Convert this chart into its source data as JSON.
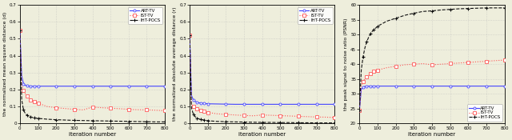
{
  "iterations": [
    0,
    10,
    20,
    30,
    40,
    50,
    60,
    70,
    80,
    90,
    100,
    150,
    200,
    250,
    300,
    350,
    400,
    450,
    500,
    550,
    600,
    650,
    700,
    750,
    800
  ],
  "plot1": {
    "ylabel": "the normalized mean square distance (d)",
    "xlabel": "iteration number",
    "ylim": [
      0,
      0.7
    ],
    "yticks": [
      0,
      0.1,
      0.2,
      0.3,
      0.4,
      0.5,
      0.6,
      0.7
    ],
    "ytick_labels": [
      "0",
      "0.1",
      "0.2",
      "0.3",
      "0.4",
      "0.5",
      "0.6",
      "0.7"
    ],
    "xlim": [
      0,
      800
    ],
    "art_tv": [
      0.55,
      0.28,
      0.235,
      0.225,
      0.222,
      0.221,
      0.221,
      0.22,
      0.22,
      0.22,
      0.22,
      0.22,
      0.22,
      0.22,
      0.22,
      0.22,
      0.22,
      0.22,
      0.22,
      0.22,
      0.22,
      0.22,
      0.22,
      0.22,
      0.22
    ],
    "ist_tv": [
      0.55,
      0.23,
      0.195,
      0.175,
      0.16,
      0.15,
      0.14,
      0.135,
      0.13,
      0.125,
      0.12,
      0.1,
      0.093,
      0.088,
      0.083,
      0.08,
      0.097,
      0.093,
      0.09,
      0.087,
      0.083,
      0.081,
      0.08,
      0.078,
      0.075
    ],
    "iht_pocs": [
      0.55,
      0.14,
      0.08,
      0.058,
      0.048,
      0.042,
      0.038,
      0.035,
      0.033,
      0.031,
      0.03,
      0.025,
      0.022,
      0.02,
      0.018,
      0.017,
      0.016,
      0.015,
      0.014,
      0.013,
      0.012,
      0.011,
      0.01,
      0.009,
      0.009
    ]
  },
  "plot2": {
    "ylabel": "the normalized absolute average distance (r)",
    "xlabel": "iteration number",
    "ylim": [
      0,
      0.7
    ],
    "yticks": [
      0,
      0.1,
      0.2,
      0.3,
      0.4,
      0.5,
      0.6,
      0.7
    ],
    "ytick_labels": [
      "0",
      "0.1",
      "0.2",
      "0.3",
      "0.4",
      "0.5",
      "0.6",
      "0.7"
    ],
    "xlim": [
      0,
      800
    ],
    "art_tv": [
      0.52,
      0.165,
      0.14,
      0.13,
      0.125,
      0.122,
      0.12,
      0.119,
      0.118,
      0.117,
      0.116,
      0.115,
      0.114,
      0.113,
      0.113,
      0.113,
      0.113,
      0.113,
      0.113,
      0.113,
      0.113,
      0.113,
      0.113,
      0.113,
      0.113
    ],
    "ist_tv": [
      0.52,
      0.115,
      0.1,
      0.09,
      0.085,
      0.08,
      0.075,
      0.072,
      0.07,
      0.068,
      0.065,
      0.057,
      0.053,
      0.05,
      0.047,
      0.045,
      0.05,
      0.048,
      0.046,
      0.044,
      0.042,
      0.04,
      0.038,
      0.037,
      0.035
    ],
    "iht_pocs": [
      0.52,
      0.09,
      0.055,
      0.04,
      0.032,
      0.027,
      0.024,
      0.022,
      0.02,
      0.018,
      0.016,
      0.012,
      0.01,
      0.009,
      0.008,
      0.007,
      0.006,
      0.006,
      0.005,
      0.005,
      0.004,
      0.004,
      0.003,
      0.003,
      0.003
    ]
  },
  "plot3": {
    "ylabel": "the peak signal to noise ratio (PSNR)",
    "xlabel": "iteration number",
    "ylim": [
      20,
      60
    ],
    "yticks": [
      20,
      25,
      30,
      35,
      40,
      45,
      50,
      55,
      60
    ],
    "ytick_labels": [
      "20",
      "25",
      "30",
      "35",
      "40",
      "45",
      "50",
      "55",
      "60"
    ],
    "xlim": [
      0,
      800
    ],
    "art_tv": [
      24.5,
      31.5,
      32.2,
      32.5,
      32.6,
      32.6,
      32.6,
      32.6,
      32.6,
      32.6,
      32.6,
      32.6,
      32.6,
      32.6,
      32.6,
      32.6,
      32.6,
      32.6,
      32.6,
      32.6,
      32.6,
      32.6,
      32.6,
      32.6,
      32.6
    ],
    "ist_tv": [
      24.5,
      32.5,
      34.0,
      35.0,
      35.8,
      36.3,
      36.8,
      37.2,
      37.5,
      37.8,
      38.0,
      38.8,
      39.3,
      39.8,
      40.0,
      40.2,
      39.8,
      40.0,
      40.2,
      40.4,
      40.6,
      40.8,
      41.0,
      41.2,
      41.4
    ],
    "iht_pocs": [
      24.5,
      38.0,
      42.5,
      45.5,
      47.5,
      49.0,
      50.2,
      51.0,
      51.8,
      52.2,
      52.8,
      54.5,
      55.5,
      56.5,
      57.2,
      57.8,
      58.0,
      58.3,
      58.5,
      58.7,
      58.8,
      58.9,
      59.0,
      59.0,
      59.0
    ]
  },
  "colors": {
    "art_tv": "#4444FF",
    "ist_tv": "#FF5555",
    "iht_pocs": "#111111"
  },
  "bg_color": "#eeeedc",
  "grid_color": "#bbbbbb",
  "legend": [
    "ART-TV",
    "IST-TV",
    "IHT-POCS"
  ]
}
